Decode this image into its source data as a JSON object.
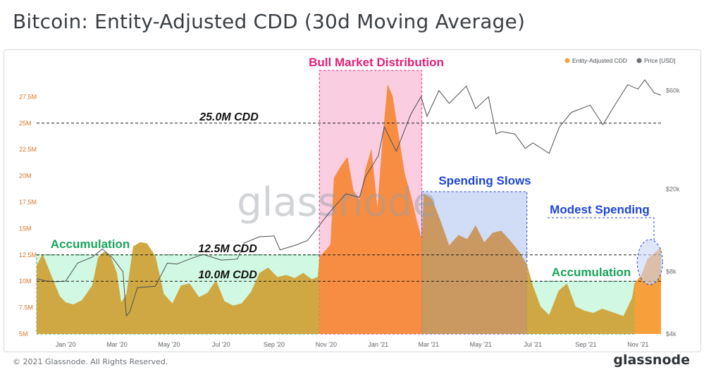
{
  "title": "Bitcoin: Entity-Adjusted CDD (30d Moving Average)",
  "footer": {
    "copyright": "© 2021 Glassnode. All Rights Reserved.",
    "brand": "glassnode"
  },
  "watermark": "glassnode",
  "colors": {
    "cdd_normal": "#cfa33a",
    "cdd_bull": "#f7893a",
    "cdd_slow": "#c9955a",
    "cdd_modest": "#f59a30",
    "price_line": "#4b4f54",
    "zone_accum": "#c9f7dd",
    "zone_bull": "#f9c4dc",
    "zone_slow": "#c9d6f5",
    "label_green": "#17a35a",
    "label_pink": "#e51f78",
    "label_blue": "#1f45d6"
  },
  "chart_data": {
    "type": "area",
    "x_tick_labels": [
      "Jan '20",
      "Mar '20",
      "May '20",
      "Jul '20",
      "Sep '20",
      "Nov '20",
      "Jan '21",
      "Mar '21",
      "May '21",
      "Jul '21",
      "Sep '21",
      "Nov '21"
    ],
    "x_range": [
      "2019-11-28",
      "2021-11-28"
    ],
    "y_left": {
      "ticks": [
        "5M",
        "7.5M",
        "10M",
        "12.5M",
        "15M",
        "17.5M",
        "20M",
        "22.5M",
        "25M",
        "27.5M"
      ],
      "range": [
        5,
        30
      ],
      "unit": "M"
    },
    "y_right": {
      "ticks": [
        "$4k",
        "$8k",
        "$20k",
        "$60k"
      ],
      "scale": "log",
      "range": [
        4000,
        75000
      ]
    },
    "legend": {
      "placement": "top-right",
      "items": [
        {
          "label": "Entity-Adjusted CDD",
          "color": "#f7a13a"
        },
        {
          "label": "Price [USD]",
          "color": "#6b6f74"
        }
      ]
    },
    "series": [
      {
        "name": "Entity-Adjusted CDD",
        "unit": "M",
        "points": [
          [
            "2019-11-28",
            11.5
          ],
          [
            "2019-12-05",
            12.6
          ],
          [
            "2019-12-12",
            11.2
          ],
          [
            "2019-12-18",
            10.0
          ],
          [
            "2019-12-25",
            8.6
          ],
          [
            "2020-01-01",
            8.0
          ],
          [
            "2020-01-10",
            7.8
          ],
          [
            "2020-01-20",
            8.2
          ],
          [
            "2020-02-01",
            9.6
          ],
          [
            "2020-02-08",
            12.3
          ],
          [
            "2020-02-15",
            12.8
          ],
          [
            "2020-02-22",
            12.5
          ],
          [
            "2020-03-01",
            10.8
          ],
          [
            "2020-03-06",
            8.0
          ],
          [
            "2020-03-12",
            8.8
          ],
          [
            "2020-03-20",
            13.3
          ],
          [
            "2020-03-28",
            13.7
          ],
          [
            "2020-04-05",
            13.6
          ],
          [
            "2020-04-15",
            12.4
          ],
          [
            "2020-04-25",
            8.8
          ],
          [
            "2020-05-05",
            7.9
          ],
          [
            "2020-05-15",
            9.6
          ],
          [
            "2020-05-25",
            9.8
          ],
          [
            "2020-06-05",
            8.5
          ],
          [
            "2020-06-15",
            8.9
          ],
          [
            "2020-06-25",
            10.1
          ],
          [
            "2020-07-05",
            8.1
          ],
          [
            "2020-07-15",
            7.7
          ],
          [
            "2020-07-25",
            7.9
          ],
          [
            "2020-08-05",
            9.0
          ],
          [
            "2020-08-15",
            10.8
          ],
          [
            "2020-08-25",
            11.3
          ],
          [
            "2020-09-05",
            10.4
          ],
          [
            "2020-09-15",
            10.6
          ],
          [
            "2020-09-25",
            10.3
          ],
          [
            "2020-10-05",
            10.8
          ],
          [
            "2020-10-15",
            10.2
          ],
          [
            "2020-10-22",
            10.4
          ],
          [
            "2020-10-24",
            12.3
          ],
          [
            "2020-11-01",
            13.0
          ],
          [
            "2020-11-06",
            13.5
          ],
          [
            "2020-11-10",
            19.8
          ],
          [
            "2020-11-18",
            20.9
          ],
          [
            "2020-11-26",
            21.8
          ],
          [
            "2020-12-03",
            18.6
          ],
          [
            "2020-12-10",
            17.7
          ],
          [
            "2020-12-17",
            20.6
          ],
          [
            "2020-12-24",
            22.6
          ],
          [
            "2020-12-31",
            17.0
          ],
          [
            "2021-01-06",
            23.6
          ],
          [
            "2021-01-12",
            28.7
          ],
          [
            "2021-01-18",
            27.5
          ],
          [
            "2021-01-25",
            23.8
          ],
          [
            "2021-02-01",
            20.2
          ],
          [
            "2021-02-08",
            18.2
          ],
          [
            "2021-02-15",
            15.8
          ],
          [
            "2021-02-21",
            14.0
          ],
          [
            "2021-02-23",
            18.3
          ],
          [
            "2021-03-05",
            17.8
          ],
          [
            "2021-03-15",
            15.7
          ],
          [
            "2021-03-25",
            13.4
          ],
          [
            "2021-04-05",
            14.4
          ],
          [
            "2021-04-15",
            14.0
          ],
          [
            "2021-04-25",
            15.3
          ],
          [
            "2021-05-05",
            13.7
          ],
          [
            "2021-05-15",
            14.6
          ],
          [
            "2021-05-25",
            14.8
          ],
          [
            "2021-06-05",
            13.8
          ],
          [
            "2021-06-15",
            12.8
          ],
          [
            "2021-06-24",
            11.6
          ],
          [
            "2021-07-01",
            9.6
          ],
          [
            "2021-07-10",
            7.6
          ],
          [
            "2021-07-20",
            6.8
          ],
          [
            "2021-07-31",
            9.1
          ],
          [
            "2021-08-10",
            9.8
          ],
          [
            "2021-08-20",
            7.6
          ],
          [
            "2021-08-31",
            7.2
          ],
          [
            "2021-09-10",
            7.0
          ],
          [
            "2021-09-20",
            7.4
          ],
          [
            "2021-10-01",
            7.1
          ],
          [
            "2021-10-15",
            6.7
          ],
          [
            "2021-10-25",
            8.4
          ],
          [
            "2021-10-28",
            9.8
          ],
          [
            "2021-11-05",
            10.6
          ],
          [
            "2021-11-12",
            12.1
          ],
          [
            "2021-11-22",
            12.8
          ],
          [
            "2021-11-28",
            13.2
          ]
        ]
      },
      {
        "name": "Price [USD]",
        "unit": "USD",
        "points": [
          [
            "2019-11-28",
            7400
          ],
          [
            "2019-12-10",
            7200
          ],
          [
            "2019-12-20",
            7150
          ],
          [
            "2020-01-01",
            7200
          ],
          [
            "2020-01-15",
            8800
          ],
          [
            "2020-02-01",
            9400
          ],
          [
            "2020-02-13",
            10300
          ],
          [
            "2020-02-25",
            9300
          ],
          [
            "2020-03-08",
            8000
          ],
          [
            "2020-03-12",
            4900
          ],
          [
            "2020-03-16",
            5100
          ],
          [
            "2020-03-25",
            6700
          ],
          [
            "2020-04-15",
            6800
          ],
          [
            "2020-04-29",
            8800
          ],
          [
            "2020-05-10",
            8700
          ],
          [
            "2020-05-25",
            9200
          ],
          [
            "2020-06-10",
            9700
          ],
          [
            "2020-07-01",
            9100
          ],
          [
            "2020-07-20",
            9200
          ],
          [
            "2020-07-28",
            11000
          ],
          [
            "2020-08-15",
            11800
          ],
          [
            "2020-09-01",
            11900
          ],
          [
            "2020-09-08",
            10200
          ],
          [
            "2020-09-25",
            10700
          ],
          [
            "2020-10-10",
            11300
          ],
          [
            "2020-10-21",
            12900
          ],
          [
            "2020-11-05",
            15500
          ],
          [
            "2020-11-24",
            19000
          ],
          [
            "2020-12-10",
            18300
          ],
          [
            "2020-12-17",
            23000
          ],
          [
            "2021-01-01",
            29000
          ],
          [
            "2021-01-08",
            40000
          ],
          [
            "2021-01-22",
            30500
          ],
          [
            "2021-02-08",
            46000
          ],
          [
            "2021-02-20",
            56000
          ],
          [
            "2021-02-27",
            45000
          ],
          [
            "2021-03-13",
            60000
          ],
          [
            "2021-03-25",
            52000
          ],
          [
            "2021-04-14",
            63000
          ],
          [
            "2021-04-25",
            49000
          ],
          [
            "2021-05-10",
            56000
          ],
          [
            "2021-05-19",
            37000
          ],
          [
            "2021-05-25",
            38000
          ],
          [
            "2021-06-10",
            37000
          ],
          [
            "2021-06-22",
            31500
          ],
          [
            "2021-07-01",
            33500
          ],
          [
            "2021-07-20",
            29800
          ],
          [
            "2021-08-01",
            40000
          ],
          [
            "2021-08-15",
            47000
          ],
          [
            "2021-09-06",
            51000
          ],
          [
            "2021-09-21",
            41000
          ],
          [
            "2021-10-01",
            48000
          ],
          [
            "2021-10-20",
            64000
          ],
          [
            "2021-11-01",
            61000
          ],
          [
            "2021-11-09",
            67500
          ],
          [
            "2021-11-20",
            58500
          ],
          [
            "2021-11-28",
            57000
          ]
        ]
      }
    ],
    "reference_lines": [
      {
        "value": 25.0,
        "label": "25.0M CDD"
      },
      {
        "value": 12.5,
        "label": "12.5M CDD"
      },
      {
        "value": 10.0,
        "label": "10.0M CDD"
      }
    ],
    "annotations": [
      {
        "label": "Accumulation",
        "start": "2019-11-28",
        "end": "2020-10-24",
        "y_top": 12.5,
        "zone": "accum"
      },
      {
        "label": "Bull Market Distribution",
        "start": "2020-10-24",
        "end": "2021-02-21",
        "y_top": 30.0,
        "zone": "bull"
      },
      {
        "label": "Spending Slows",
        "start": "2021-02-21",
        "end": "2021-06-24",
        "y_top": 18.5,
        "zone": "slow"
      },
      {
        "label": "Accumulation",
        "start": "2021-06-24",
        "end": "2021-10-28",
        "y_top": 10.0,
        "zone": "accum2"
      },
      {
        "label": "Modest Spending",
        "start": "2021-10-28",
        "end": "2021-11-28",
        "y_top": 10.0,
        "zone": "modest"
      }
    ]
  }
}
